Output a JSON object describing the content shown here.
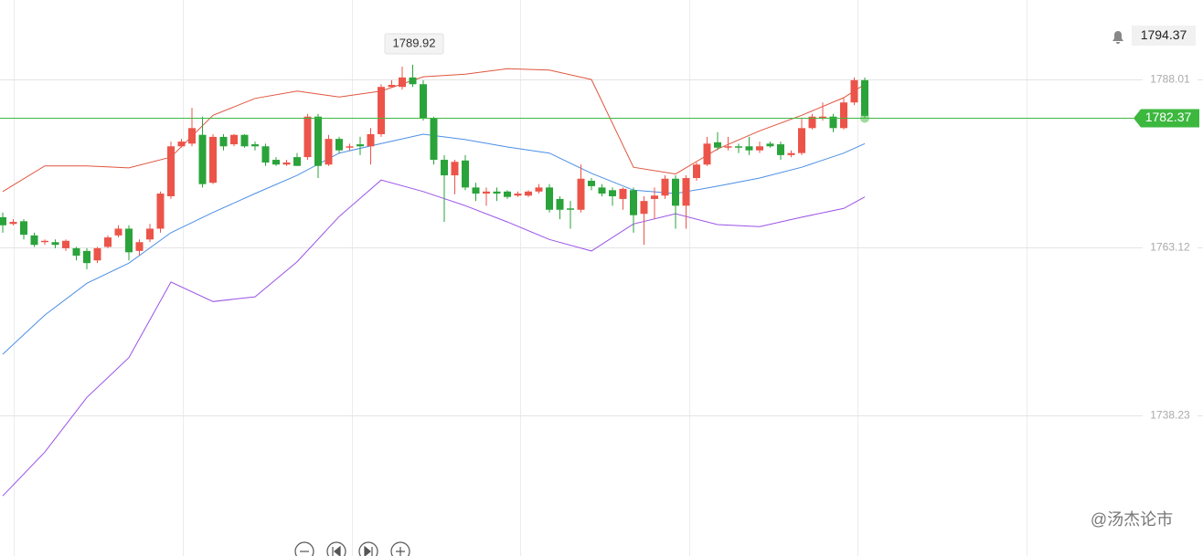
{
  "chart_data": {
    "type": "candlestick",
    "up_color": "#ec5449",
    "down_color": "#2aa33a",
    "open": [
      1767.6,
      1766.6,
      1767.0,
      1764.9,
      1763.9,
      1763.9,
      1763.0,
      1763.0,
      1762.6,
      1761.2,
      1763.2,
      1764.9,
      1765.9,
      1762.6,
      1764.3,
      1765.9,
      1770.7,
      1778.1,
      1778.5,
      1779.8,
      1772.7,
      1779.5,
      1778.4,
      1779.8,
      1778.4,
      1778.1,
      1776.1,
      1775.4,
      1776.5,
      1776.5,
      1782.5,
      1775.4,
      1779.2,
      1777.9,
      1778.4,
      1778.1,
      1779.9,
      1786.9,
      1786.9,
      1788.3,
      1787.3,
      1782.2,
      1776.1,
      1773.8,
      1776.0,
      1772.0,
      1771.1,
      1771.4,
      1771.4,
      1770.8,
      1770.8,
      1771.4,
      1772.0,
      1770.3,
      1768.9,
      1768.7,
      1773.0,
      1772.0,
      1771.6,
      1770.3,
      1771.6,
      1768.1,
      1770.3,
      1770.8,
      1773.3,
      1769.3,
      1773.4,
      1775.4,
      1778.7,
      1777.9,
      1778.1,
      1778.1,
      1777.5,
      1778.5,
      1778.4,
      1776.8,
      1777.1,
      1780.8,
      1782.2,
      1782.5,
      1780.8,
      1784.6,
      1787.9
    ],
    "high": [
      1768.3,
      1767.3,
      1767.3,
      1765.3,
      1764.3,
      1764.3,
      1764.3,
      1763.2,
      1763.0,
      1763.2,
      1764.9,
      1766.4,
      1766.4,
      1764.3,
      1766.6,
      1771.4,
      1778.8,
      1779.2,
      1783.8,
      1782.5,
      1779.9,
      1779.9,
      1779.9,
      1779.9,
      1778.8,
      1778.5,
      1776.5,
      1776.1,
      1777.1,
      1782.9,
      1782.9,
      1779.8,
      1779.5,
      1778.5,
      1779.5,
      1780.8,
      1787.3,
      1787.9,
      1789.9,
      1790.2,
      1787.9,
      1782.5,
      1776.8,
      1776.1,
      1776.8,
      1772.7,
      1772.0,
      1772.0,
      1771.6,
      1771.4,
      1771.6,
      1772.5,
      1772.5,
      1770.7,
      1770.0,
      1775.4,
      1773.4,
      1772.5,
      1772.0,
      1772.0,
      1772.0,
      1770.7,
      1772.0,
      1773.8,
      1773.8,
      1773.8,
      1775.7,
      1779.5,
      1780.2,
      1779.5,
      1778.5,
      1779.5,
      1778.8,
      1778.8,
      1778.8,
      1777.5,
      1782.2,
      1782.9,
      1784.6,
      1782.9,
      1785.2,
      1788.3,
      1788.3
    ],
    "low": [
      1765.3,
      1766.4,
      1764.3,
      1763.2,
      1763.5,
      1763.0,
      1762.6,
      1761.2,
      1759.9,
      1760.8,
      1763.0,
      1764.6,
      1761.2,
      1761.9,
      1763.9,
      1765.3,
      1770.3,
      1777.9,
      1778.1,
      1772.0,
      1772.5,
      1777.5,
      1778.1,
      1777.9,
      1777.5,
      1775.2,
      1775.2,
      1775.2,
      1775.2,
      1776.1,
      1773.4,
      1775.2,
      1777.1,
      1777.5,
      1776.8,
      1775.4,
      1779.5,
      1786.9,
      1786.5,
      1786.9,
      1781.9,
      1775.4,
      1766.9,
      1771.0,
      1771.6,
      1770.0,
      1769.3,
      1770.0,
      1770.3,
      1770.6,
      1770.6,
      1771.1,
      1768.3,
      1767.3,
      1765.9,
      1768.3,
      1771.6,
      1770.7,
      1769.3,
      1768.7,
      1765.3,
      1763.5,
      1767.3,
      1770.3,
      1765.9,
      1765.9,
      1773.0,
      1775.2,
      1777.5,
      1777.5,
      1777.1,
      1776.8,
      1777.1,
      1777.9,
      1776.1,
      1776.5,
      1776.8,
      1780.6,
      1781.9,
      1780.2,
      1780.6,
      1784.2,
      1782.2
    ],
    "close": [
      1766.4,
      1766.9,
      1765.0,
      1763.5,
      1764.1,
      1763.5,
      1764.1,
      1761.9,
      1760.8,
      1763.0,
      1764.6,
      1765.9,
      1762.4,
      1763.9,
      1765.9,
      1771.1,
      1778.1,
      1778.8,
      1780.8,
      1772.5,
      1779.5,
      1778.1,
      1779.8,
      1778.1,
      1778.1,
      1775.7,
      1775.4,
      1775.7,
      1775.2,
      1782.5,
      1775.2,
      1779.2,
      1777.5,
      1778.1,
      1778.1,
      1779.9,
      1786.9,
      1787.2,
      1788.3,
      1787.3,
      1782.2,
      1776.1,
      1773.8,
      1775.8,
      1772.0,
      1771.1,
      1771.4,
      1771.1,
      1770.6,
      1771.1,
      1771.4,
      1772.0,
      1768.7,
      1768.7,
      1768.7,
      1773.3,
      1772.2,
      1771.1,
      1770.7,
      1771.8,
      1767.9,
      1770.0,
      1770.8,
      1773.3,
      1769.3,
      1773.4,
      1775.4,
      1778.5,
      1777.9,
      1778.1,
      1777.9,
      1777.5,
      1778.1,
      1778.1,
      1776.8,
      1777.1,
      1780.8,
      1782.5,
      1782.5,
      1780.8,
      1784.6,
      1787.9,
      1782.6
    ],
    "bands": [
      {
        "color": "#e0553f",
        "x": [
          0,
          4,
          8,
          12,
          16,
          20,
          24,
          28,
          32,
          36,
          40,
          44,
          48,
          52,
          56,
          60,
          64,
          68,
          72,
          76,
          80,
          82
        ],
        "values": [
          1771.4,
          1775.2,
          1775.2,
          1774.9,
          1776.5,
          1782.7,
          1785.2,
          1786.3,
          1785.4,
          1786.3,
          1788.4,
          1788.8,
          1789.6,
          1789.4,
          1788.0,
          1775.0,
          1774.0,
          1777.7,
          1780.4,
          1782.7,
          1785.3,
          1787.3
        ]
      },
      {
        "color": "#4b8ee6",
        "x": [
          0,
          4,
          8,
          12,
          16,
          20,
          24,
          28,
          32,
          36,
          40,
          44,
          48,
          52,
          56,
          60,
          64,
          68,
          72,
          76,
          80,
          82
        ],
        "values": [
          1747.3,
          1753.1,
          1757.8,
          1760.8,
          1765.3,
          1768.3,
          1771.1,
          1773.8,
          1777.1,
          1778.5,
          1779.9,
          1779.1,
          1778.0,
          1777.1,
          1774.1,
          1771.6,
          1771.1,
          1772.2,
          1773.4,
          1775.0,
          1777.1,
          1778.5
        ]
      },
      {
        "color": "#9a52e6",
        "x": [
          0,
          4,
          8,
          12,
          16,
          20,
          24,
          28,
          32,
          36,
          40,
          44,
          48,
          52,
          56,
          60,
          64,
          68,
          72,
          76,
          80,
          82
        ],
        "values": [
          1726.3,
          1732.8,
          1740.9,
          1746.8,
          1758.0,
          1755.1,
          1755.8,
          1761.0,
          1767.7,
          1773.1,
          1771.4,
          1769.3,
          1766.9,
          1764.3,
          1762.6,
          1766.6,
          1768.1,
          1766.5,
          1766.2,
          1767.6,
          1768.9,
          1770.6
        ]
      }
    ],
    "ylim": [
      1717.4,
      1799.78
    ],
    "yticks": [
      1738.23,
      1763.12,
      1788.01
    ],
    "grid": true,
    "last_price": 1782.37,
    "last_price_color": "#3db83f",
    "alert_price": 1794.37,
    "high_label": 1789.92,
    "watermark": "@汤杰论市"
  }
}
